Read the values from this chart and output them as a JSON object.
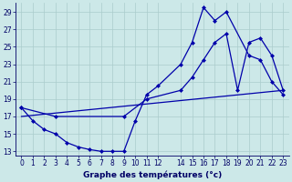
{
  "xlabel": "Graphe des températures (°c)",
  "bg_color": "#cce8e8",
  "grid_color": "#aacccc",
  "line_color": "#0000aa",
  "xlim": [
    -0.5,
    23.5
  ],
  "ylim": [
    12.5,
    30.0
  ],
  "yticks": [
    13,
    15,
    17,
    19,
    21,
    23,
    25,
    27,
    29
  ],
  "xticks": [
    0,
    1,
    2,
    3,
    4,
    5,
    6,
    7,
    8,
    9,
    10,
    11,
    12,
    14,
    15,
    16,
    17,
    18,
    19,
    20,
    21,
    22,
    23
  ],
  "line1_x": [
    0,
    1,
    2,
    3,
    4,
    5,
    6,
    7,
    8,
    9,
    10,
    11,
    12,
    14,
    15,
    16,
    17,
    18,
    20,
    21,
    22,
    23
  ],
  "line1_y": [
    18.0,
    16.5,
    15.5,
    15.0,
    14.0,
    13.5,
    13.2,
    13.0,
    13.0,
    13.0,
    16.5,
    19.5,
    20.5,
    23.0,
    25.5,
    29.5,
    28.0,
    29.0,
    24.0,
    23.5,
    21.0,
    19.5
  ],
  "line2_x": [
    0,
    3,
    9,
    11,
    14,
    15,
    16,
    17,
    18,
    19,
    20,
    21,
    22,
    23
  ],
  "line2_y": [
    18.0,
    17.0,
    17.0,
    19.0,
    20.0,
    21.5,
    23.5,
    25.5,
    26.5,
    20.0,
    25.5,
    26.0,
    24.0,
    20.0
  ],
  "line3_x": [
    0,
    23
  ],
  "line3_y": [
    17.0,
    20.0
  ],
  "tick_fontsize": 5.5,
  "xlabel_fontsize": 6.5
}
